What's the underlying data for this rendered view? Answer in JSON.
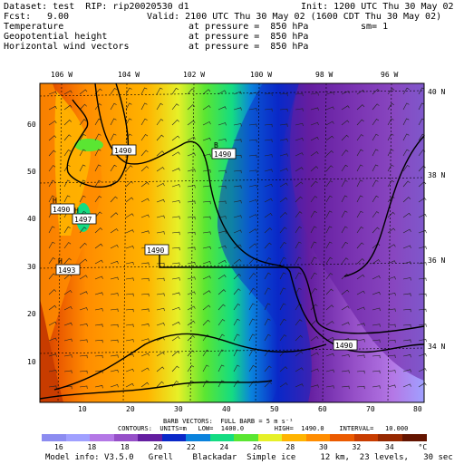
{
  "header": {
    "dataset_line": "Dataset: test  RIP: rip20020530 d1",
    "init_line": "Init: 1200 UTC Thu 30 May 02",
    "fcst_label": "Fcst:",
    "fcst_value": "9.00",
    "valid_line": "Valid: 2100 UTC Thu 30 May 02 (1600 CDT Thu 30 May 02)",
    "fields": [
      {
        "name": "Temperature",
        "level": "at pressure =  850 hPa",
        "extra": "sm= 1"
      },
      {
        "name": "Geopotential height",
        "level": "at pressure =  850 hPa",
        "extra": ""
      },
      {
        "name": "Horizontal wind vectors",
        "level": "at pressure =  850 hPa",
        "extra": ""
      }
    ]
  },
  "map": {
    "lon_labels": [
      "106 W",
      "104 W",
      "102 W",
      "100 W",
      "98 W",
      "96 W"
    ],
    "lat_labels": [
      "40 N",
      "38 N",
      "36 N",
      "34 N"
    ],
    "x_ticks": [
      "10",
      "20",
      "30",
      "40",
      "50",
      "60",
      "70",
      "80"
    ],
    "y_ticks": [
      "60",
      "50",
      "40",
      "30",
      "20",
      "10"
    ],
    "contour_labels": [
      {
        "text": "1490",
        "marker": ""
      },
      {
        "text": "1490",
        "marker": "H"
      },
      {
        "text": "1497",
        "marker": "H"
      },
      {
        "text": "1493",
        "marker": "H"
      },
      {
        "text": "1490",
        "marker": "B"
      },
      {
        "text": "1490",
        "marker": ""
      },
      {
        "text": "1490",
        "marker": ""
      }
    ]
  },
  "footer": {
    "barb_line": "BARB VECTORS:  FULL BARB = 5 m s⁻¹",
    "contour_line": "CONTOURS:  UNITS=m   LOW=  1400.0        HIGH=  1490.0    INTERVAL=   10.000",
    "model_info": "Model info: V3.5.0   Grell    Blackadar  Simple ice     12 km,  23 levels,   30 sec"
  },
  "colorbar": {
    "colors": [
      "#8c8cf0",
      "#a0a0ff",
      "#b478e6",
      "#9650c8",
      "#641ea0",
      "#0a28c8",
      "#0a82dc",
      "#14dc82",
      "#5ae632",
      "#e6f028",
      "#ffb400",
      "#ff8c00",
      "#eb5a00",
      "#c83c00",
      "#962800",
      "#641400"
    ],
    "ticks": [
      "16",
      "18",
      "18",
      "20",
      "22",
      "24",
      "26",
      "28",
      "30",
      "32",
      "34",
      "°C"
    ]
  }
}
